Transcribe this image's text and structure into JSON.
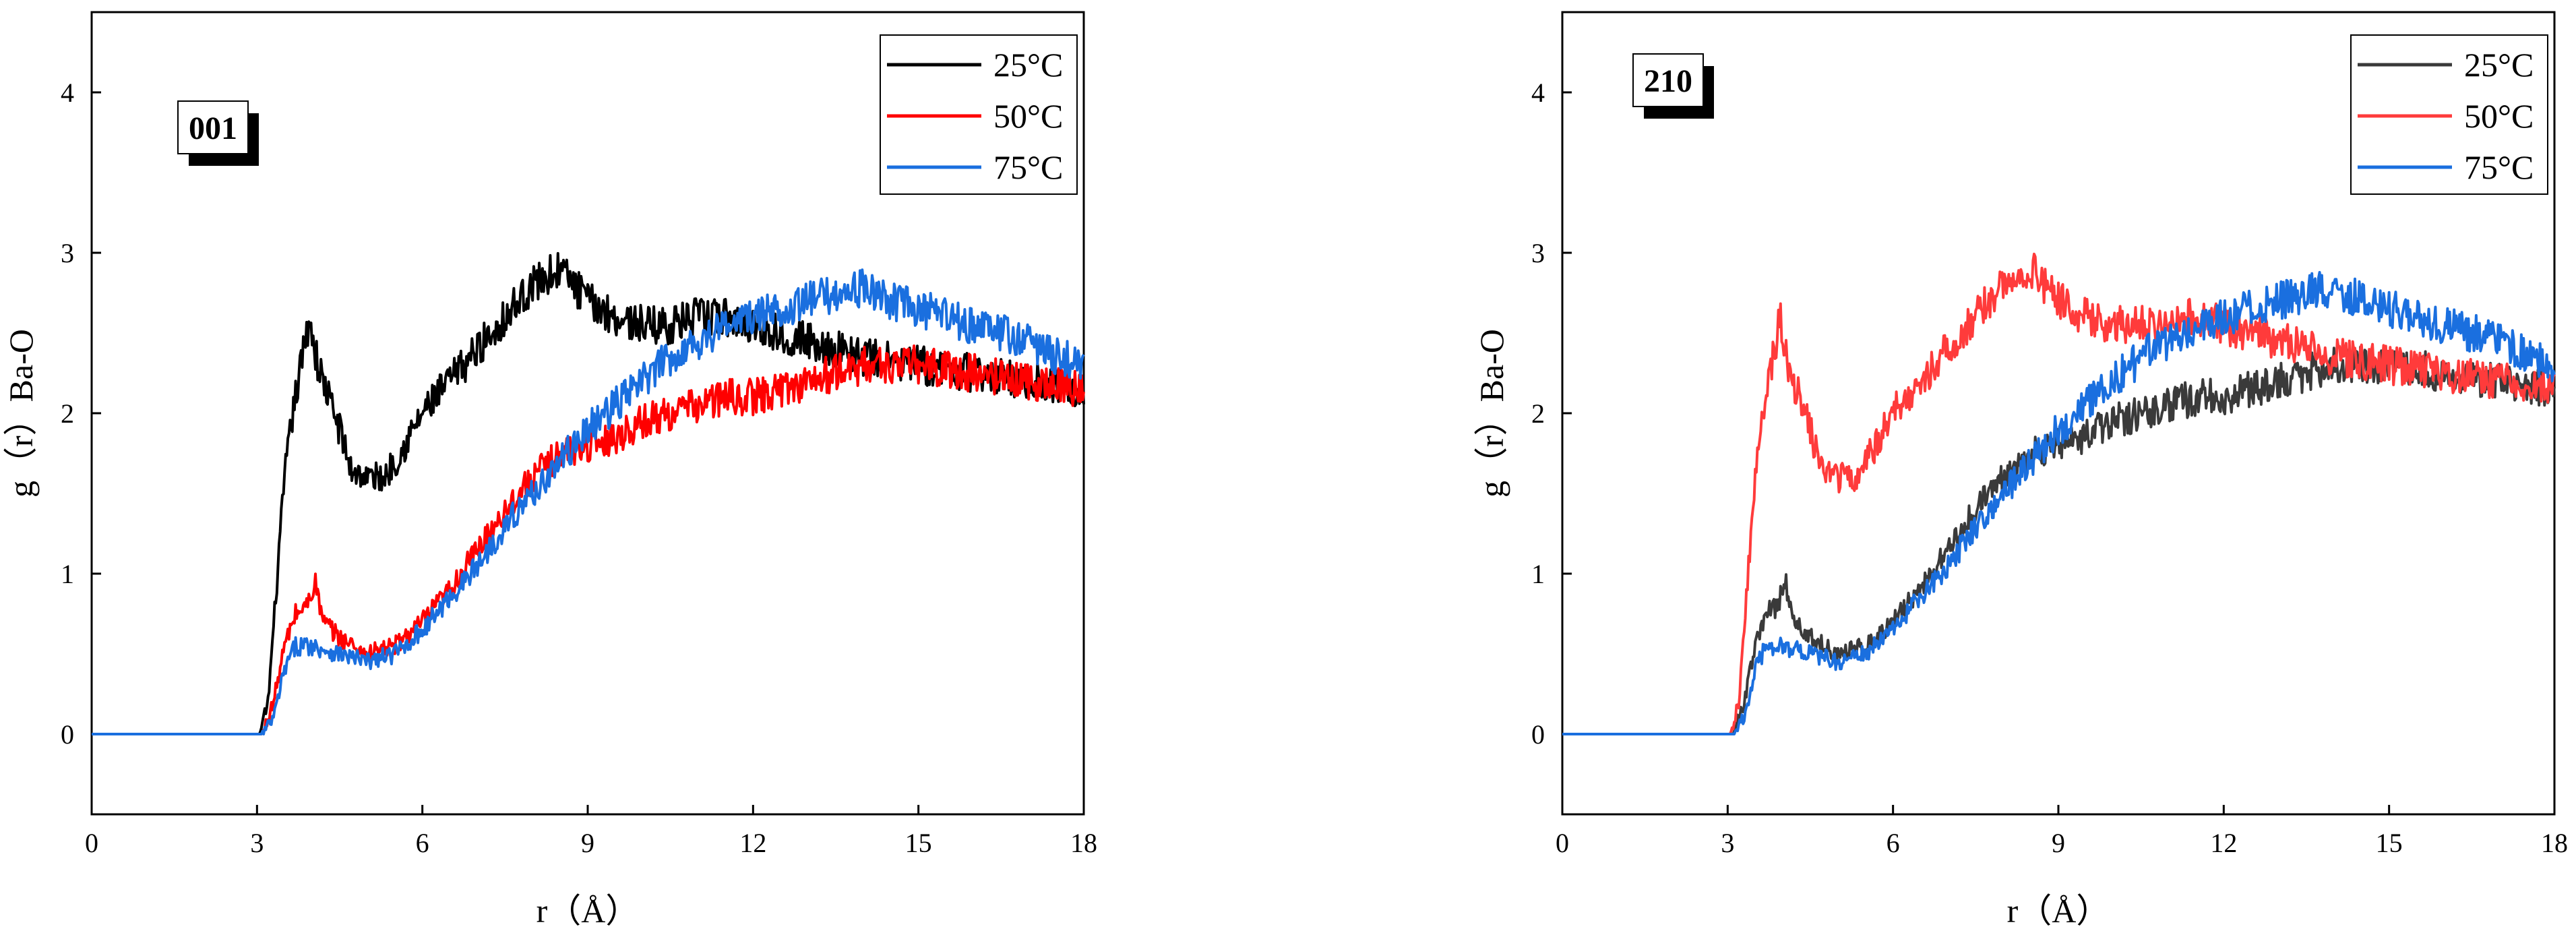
{
  "chart_data": [
    {
      "type": "line",
      "panel_tag": "001",
      "xlabel": "r（Å）",
      "ylabel": "g（r）Ba-O",
      "xlim": [
        0,
        18
      ],
      "ylim": [
        -0.5,
        4.5
      ],
      "xticks": [
        0,
        3,
        6,
        9,
        12,
        15,
        18
      ],
      "yticks": [
        0,
        1,
        2,
        3,
        4
      ],
      "legend_position": "top-right",
      "series": [
        {
          "name": "25°C",
          "color": "#000000",
          "points": [
            [
              0,
              0
            ],
            [
              3.05,
              0
            ],
            [
              3.2,
              0.2
            ],
            [
              3.35,
              0.9
            ],
            [
              3.5,
              1.6
            ],
            [
              3.65,
              2.0
            ],
            [
              3.8,
              2.3
            ],
            [
              3.95,
              2.6
            ],
            [
              4.1,
              2.3
            ],
            [
              4.3,
              2.1
            ],
            [
              4.5,
              1.9
            ],
            [
              4.7,
              1.65
            ],
            [
              5.0,
              1.6
            ],
            [
              5.3,
              1.6
            ],
            [
              5.6,
              1.75
            ],
            [
              6.0,
              2.0
            ],
            [
              6.5,
              2.2
            ],
            [
              7.0,
              2.4
            ],
            [
              7.5,
              2.6
            ],
            [
              8.0,
              2.8
            ],
            [
              8.5,
              2.9
            ],
            [
              9.0,
              2.7
            ],
            [
              9.5,
              2.6
            ],
            [
              10.0,
              2.55
            ],
            [
              10.5,
              2.55
            ],
            [
              11.0,
              2.6
            ],
            [
              11.5,
              2.6
            ],
            [
              12.0,
              2.55
            ],
            [
              12.5,
              2.5
            ],
            [
              13.0,
              2.45
            ],
            [
              13.5,
              2.4
            ],
            [
              14.0,
              2.35
            ],
            [
              15.0,
              2.3
            ],
            [
              16.0,
              2.25
            ],
            [
              17.0,
              2.2
            ],
            [
              18.0,
              2.15
            ]
          ]
        },
        {
          "name": "50°C",
          "color": "#ff0000",
          "points": [
            [
              0,
              0
            ],
            [
              3.1,
              0
            ],
            [
              3.3,
              0.2
            ],
            [
              3.5,
              0.55
            ],
            [
              3.7,
              0.75
            ],
            [
              3.9,
              0.8
            ],
            [
              4.05,
              0.95
            ],
            [
              4.2,
              0.7
            ],
            [
              4.5,
              0.6
            ],
            [
              5.0,
              0.5
            ],
            [
              5.5,
              0.55
            ],
            [
              6.0,
              0.7
            ],
            [
              6.5,
              0.9
            ],
            [
              7.0,
              1.15
            ],
            [
              7.5,
              1.4
            ],
            [
              8.0,
              1.6
            ],
            [
              8.5,
              1.75
            ],
            [
              9.0,
              1.8
            ],
            [
              9.5,
              1.85
            ],
            [
              10.0,
              1.95
            ],
            [
              10.5,
              2.0
            ],
            [
              11.0,
              2.05
            ],
            [
              11.5,
              2.1
            ],
            [
              12.0,
              2.1
            ],
            [
              12.5,
              2.15
            ],
            [
              13.0,
              2.2
            ],
            [
              13.5,
              2.25
            ],
            [
              14.0,
              2.3
            ],
            [
              15.0,
              2.3
            ],
            [
              16.0,
              2.25
            ],
            [
              17.0,
              2.2
            ],
            [
              18.0,
              2.15
            ]
          ]
        },
        {
          "name": "75°C",
          "color": "#1a6fdf",
          "points": [
            [
              0,
              0
            ],
            [
              3.1,
              0
            ],
            [
              3.3,
              0.1
            ],
            [
              3.5,
              0.4
            ],
            [
              3.7,
              0.55
            ],
            [
              4.0,
              0.55
            ],
            [
              4.5,
              0.5
            ],
            [
              5.0,
              0.45
            ],
            [
              5.5,
              0.5
            ],
            [
              6.0,
              0.65
            ],
            [
              6.5,
              0.85
            ],
            [
              7.0,
              1.05
            ],
            [
              7.5,
              1.3
            ],
            [
              8.0,
              1.5
            ],
            [
              8.5,
              1.7
            ],
            [
              9.0,
              1.9
            ],
            [
              9.5,
              2.05
            ],
            [
              10.0,
              2.2
            ],
            [
              10.5,
              2.35
            ],
            [
              11.0,
              2.45
            ],
            [
              11.5,
              2.55
            ],
            [
              12.0,
              2.6
            ],
            [
              12.5,
              2.65
            ],
            [
              13.0,
              2.7
            ],
            [
              13.5,
              2.75
            ],
            [
              14.0,
              2.78
            ],
            [
              14.5,
              2.7
            ],
            [
              15.0,
              2.65
            ],
            [
              15.5,
              2.6
            ],
            [
              16.0,
              2.55
            ],
            [
              16.5,
              2.5
            ],
            [
              17.0,
              2.45
            ],
            [
              17.5,
              2.35
            ],
            [
              18.0,
              2.3
            ]
          ]
        }
      ]
    },
    {
      "type": "line",
      "panel_tag": "210",
      "xlabel": "r（Å）",
      "ylabel": "g（r）Ba-O",
      "xlim": [
        0,
        18
      ],
      "ylim": [
        -0.5,
        4.5
      ],
      "xticks": [
        0,
        3,
        6,
        9,
        12,
        15,
        18
      ],
      "yticks": [
        0,
        1,
        2,
        3,
        4
      ],
      "legend_position": "top-right",
      "series": [
        {
          "name": "25°C",
          "color": "#3a3a3a",
          "points": [
            [
              0,
              0
            ],
            [
              3.1,
              0
            ],
            [
              3.3,
              0.2
            ],
            [
              3.5,
              0.55
            ],
            [
              3.7,
              0.75
            ],
            [
              3.9,
              0.8
            ],
            [
              4.05,
              0.95
            ],
            [
              4.2,
              0.7
            ],
            [
              4.5,
              0.6
            ],
            [
              5.0,
              0.5
            ],
            [
              5.5,
              0.55
            ],
            [
              6.0,
              0.7
            ],
            [
              6.5,
              0.9
            ],
            [
              7.0,
              1.15
            ],
            [
              7.5,
              1.4
            ],
            [
              8.0,
              1.6
            ],
            [
              8.5,
              1.75
            ],
            [
              9.0,
              1.8
            ],
            [
              9.5,
              1.85
            ],
            [
              10.0,
              1.95
            ],
            [
              10.5,
              2.0
            ],
            [
              11.0,
              2.05
            ],
            [
              11.5,
              2.1
            ],
            [
              12.0,
              2.1
            ],
            [
              12.5,
              2.15
            ],
            [
              13.0,
              2.2
            ],
            [
              13.5,
              2.25
            ],
            [
              14.0,
              2.3
            ],
            [
              15.0,
              2.3
            ],
            [
              16.0,
              2.25
            ],
            [
              17.0,
              2.2
            ],
            [
              18.0,
              2.15
            ]
          ]
        },
        {
          "name": "50°C",
          "color": "#ff3b3b",
          "points": [
            [
              0,
              0
            ],
            [
              3.05,
              0
            ],
            [
              3.2,
              0.2
            ],
            [
              3.35,
              0.9
            ],
            [
              3.5,
              1.6
            ],
            [
              3.65,
              2.0
            ],
            [
              3.8,
              2.3
            ],
            [
              3.95,
              2.6
            ],
            [
              4.1,
              2.3
            ],
            [
              4.3,
              2.1
            ],
            [
              4.5,
              1.9
            ],
            [
              4.7,
              1.65
            ],
            [
              5.0,
              1.6
            ],
            [
              5.3,
              1.6
            ],
            [
              5.6,
              1.75
            ],
            [
              6.0,
              2.0
            ],
            [
              6.5,
              2.2
            ],
            [
              7.0,
              2.4
            ],
            [
              7.5,
              2.6
            ],
            [
              8.0,
              2.8
            ],
            [
              8.5,
              2.9
            ],
            [
              9.0,
              2.7
            ],
            [
              9.5,
              2.6
            ],
            [
              10.0,
              2.55
            ],
            [
              10.5,
              2.55
            ],
            [
              11.0,
              2.6
            ],
            [
              11.5,
              2.6
            ],
            [
              12.0,
              2.55
            ],
            [
              12.5,
              2.5
            ],
            [
              13.0,
              2.45
            ],
            [
              13.5,
              2.4
            ],
            [
              14.0,
              2.35
            ],
            [
              15.0,
              2.3
            ],
            [
              16.0,
              2.25
            ],
            [
              17.0,
              2.2
            ],
            [
              18.0,
              2.15
            ]
          ]
        },
        {
          "name": "75°C",
          "color": "#1a6fdf",
          "points": [
            [
              0,
              0
            ],
            [
              3.1,
              0
            ],
            [
              3.3,
              0.1
            ],
            [
              3.5,
              0.4
            ],
            [
              3.7,
              0.55
            ],
            [
              4.0,
              0.55
            ],
            [
              4.5,
              0.5
            ],
            [
              5.0,
              0.45
            ],
            [
              5.5,
              0.5
            ],
            [
              6.0,
              0.65
            ],
            [
              6.5,
              0.85
            ],
            [
              7.0,
              1.05
            ],
            [
              7.5,
              1.3
            ],
            [
              8.0,
              1.5
            ],
            [
              8.5,
              1.7
            ],
            [
              9.0,
              1.9
            ],
            [
              9.5,
              2.05
            ],
            [
              10.0,
              2.2
            ],
            [
              10.5,
              2.35
            ],
            [
              11.0,
              2.45
            ],
            [
              11.5,
              2.55
            ],
            [
              12.0,
              2.6
            ],
            [
              12.5,
              2.65
            ],
            [
              13.0,
              2.7
            ],
            [
              13.5,
              2.75
            ],
            [
              14.0,
              2.78
            ],
            [
              14.5,
              2.7
            ],
            [
              15.0,
              2.65
            ],
            [
              15.5,
              2.6
            ],
            [
              16.0,
              2.55
            ],
            [
              16.5,
              2.5
            ],
            [
              17.0,
              2.45
            ],
            [
              17.5,
              2.35
            ],
            [
              18.0,
              2.3
            ]
          ]
        }
      ]
    }
  ]
}
